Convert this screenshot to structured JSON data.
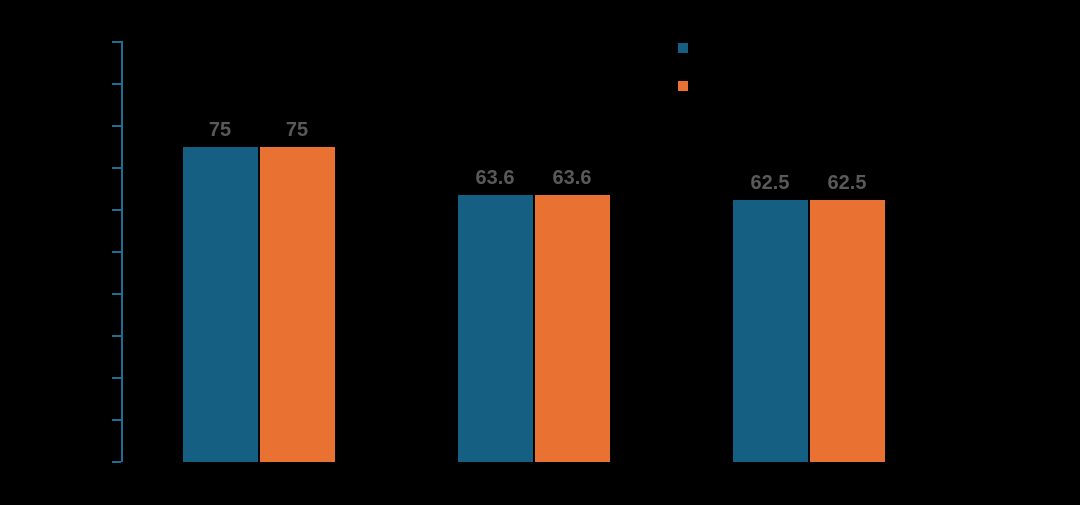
{
  "colors": {
    "background": "#000000",
    "series1": "#156082",
    "series2": "#E97132",
    "axis": "#1F6D93",
    "value_label": "#595959"
  },
  "legend": {
    "position": "top-right",
    "swatches": [
      {
        "name": "series1-swatch",
        "color": "#156082"
      },
      {
        "name": "series2-swatch",
        "color": "#E97132"
      }
    ]
  },
  "chart_data": {
    "type": "bar",
    "categories": [
      "",
      "",
      ""
    ],
    "series": [
      {
        "name": "",
        "color": "#156082",
        "values": [
          75,
          63.6,
          62.5
        ],
        "value_labels": [
          "75",
          "63.6",
          "62.5"
        ]
      },
      {
        "name": "",
        "color": "#E97132",
        "values": [
          75,
          63.6,
          62.5
        ],
        "value_labels": [
          "75",
          "63.6",
          "62.5"
        ]
      }
    ],
    "ylim": [
      0,
      100
    ],
    "ytick_step": 10,
    "yticks": [
      0,
      10,
      20,
      30,
      40,
      50,
      60,
      70,
      80,
      90,
      100
    ],
    "grid": false,
    "legend_position": "top-right",
    "value_labels_shown": true
  }
}
